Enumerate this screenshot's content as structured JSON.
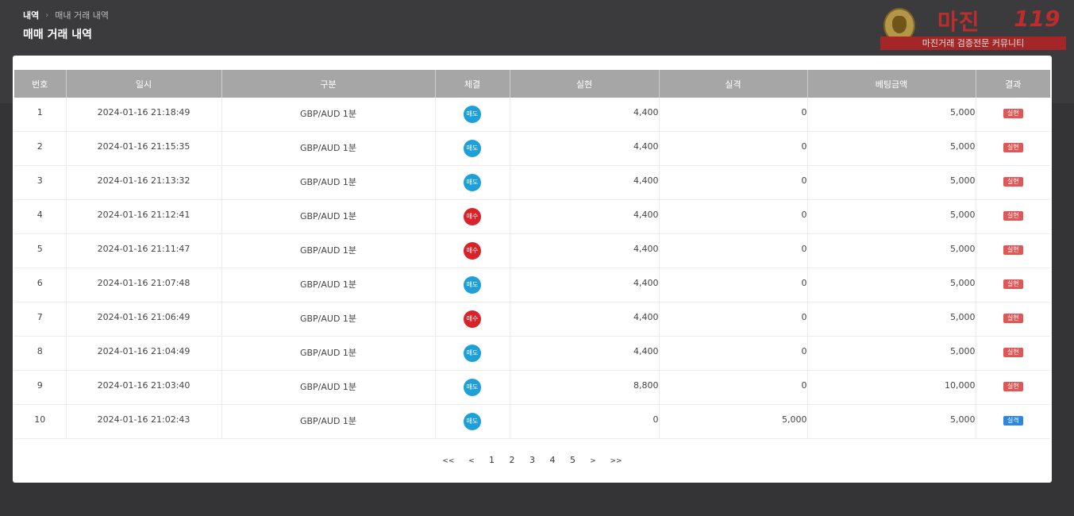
{
  "breadcrumb": {
    "root": "내역",
    "separator": "›",
    "current": "매내 거래 내역"
  },
  "page_title": "매매 거래 내역",
  "watermark": {
    "name": "마진",
    "number": "119",
    "tagline": "마진거래 검증전문 커뮤니티"
  },
  "table": {
    "headers": [
      "번호",
      "일시",
      "구분",
      "체결",
      "실현",
      "실격",
      "베팅금액",
      "결과"
    ],
    "rows": [
      {
        "no": "1",
        "datetime": "2024-01-16 21:18:49",
        "type": "GBP/AUD 1분",
        "fill": "매도",
        "fill_kind": "sell",
        "realized": "4,400",
        "lost": "0",
        "bet": "5,000",
        "result": "실현",
        "result_kind": "win"
      },
      {
        "no": "2",
        "datetime": "2024-01-16 21:15:35",
        "type": "GBP/AUD 1분",
        "fill": "매도",
        "fill_kind": "sell",
        "realized": "4,400",
        "lost": "0",
        "bet": "5,000",
        "result": "실현",
        "result_kind": "win"
      },
      {
        "no": "3",
        "datetime": "2024-01-16 21:13:32",
        "type": "GBP/AUD 1분",
        "fill": "매도",
        "fill_kind": "sell",
        "realized": "4,400",
        "lost": "0",
        "bet": "5,000",
        "result": "실현",
        "result_kind": "win"
      },
      {
        "no": "4",
        "datetime": "2024-01-16 21:12:41",
        "type": "GBP/AUD 1분",
        "fill": "매수",
        "fill_kind": "buy",
        "realized": "4,400",
        "lost": "0",
        "bet": "5,000",
        "result": "실현",
        "result_kind": "win"
      },
      {
        "no": "5",
        "datetime": "2024-01-16 21:11:47",
        "type": "GBP/AUD 1분",
        "fill": "매수",
        "fill_kind": "buy",
        "realized": "4,400",
        "lost": "0",
        "bet": "5,000",
        "result": "실현",
        "result_kind": "win"
      },
      {
        "no": "6",
        "datetime": "2024-01-16 21:07:48",
        "type": "GBP/AUD 1분",
        "fill": "매도",
        "fill_kind": "sell",
        "realized": "4,400",
        "lost": "0",
        "bet": "5,000",
        "result": "실현",
        "result_kind": "win"
      },
      {
        "no": "7",
        "datetime": "2024-01-16 21:06:49",
        "type": "GBP/AUD 1분",
        "fill": "매수",
        "fill_kind": "buy",
        "realized": "4,400",
        "lost": "0",
        "bet": "5,000",
        "result": "실현",
        "result_kind": "win"
      },
      {
        "no": "8",
        "datetime": "2024-01-16 21:04:49",
        "type": "GBP/AUD 1분",
        "fill": "매도",
        "fill_kind": "sell",
        "realized": "4,400",
        "lost": "0",
        "bet": "5,000",
        "result": "실현",
        "result_kind": "win"
      },
      {
        "no": "9",
        "datetime": "2024-01-16 21:03:40",
        "type": "GBP/AUD 1분",
        "fill": "매도",
        "fill_kind": "sell",
        "realized": "8,800",
        "lost": "0",
        "bet": "10,000",
        "result": "실현",
        "result_kind": "win"
      },
      {
        "no": "10",
        "datetime": "2024-01-16 21:02:43",
        "type": "GBP/AUD 1분",
        "fill": "매도",
        "fill_kind": "sell",
        "realized": "0",
        "lost": "5,000",
        "bet": "5,000",
        "result": "실격",
        "result_kind": "lose"
      }
    ]
  },
  "pagination": {
    "first": "<<",
    "prev": "<",
    "pages": [
      "1",
      "2",
      "3",
      "4",
      "5"
    ],
    "next": ">",
    "last": ">>"
  },
  "colors": {
    "sell": "#1e9fd8",
    "buy": "#d9232b",
    "win": "#e05757",
    "lose": "#2e86de",
    "header": "#a6a6a6",
    "background": "#343436"
  }
}
